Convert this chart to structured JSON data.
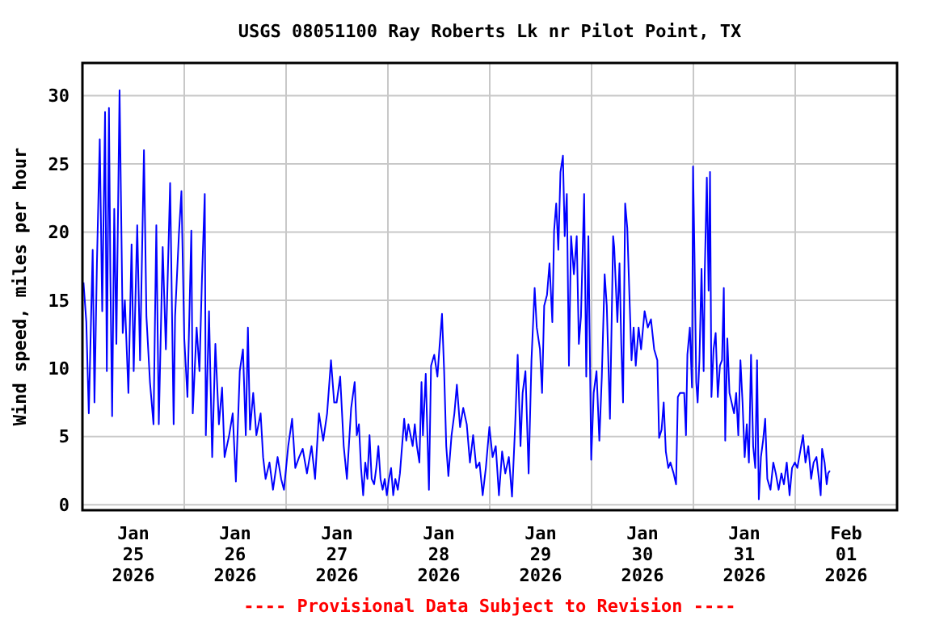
{
  "chart_data": {
    "type": "line",
    "title": "USGS 08051100 Ray Roberts Lk nr Pilot Point, TX",
    "ylabel": "Wind speed, miles per hour",
    "annotations": [
      "---- Provisional Data Subject to Revision ----"
    ],
    "xlim": [
      "2026-01-25T00:00",
      "2026-02-02T00:00"
    ],
    "xticks": [
      {
        "value": "2026-01-25T12:00",
        "label": "Jan\n25\n2026"
      },
      {
        "value": "2026-01-26T00:00",
        "label": null
      },
      {
        "value": "2026-01-26T12:00",
        "label": "Jan\n26\n2026"
      },
      {
        "value": "2026-01-27T00:00",
        "label": null
      },
      {
        "value": "2026-01-27T12:00",
        "label": "Jan\n27\n2026"
      },
      {
        "value": "2026-01-28T00:00",
        "label": null
      },
      {
        "value": "2026-01-28T12:00",
        "label": "Jan\n28\n2026"
      },
      {
        "value": "2026-01-29T00:00",
        "label": null
      },
      {
        "value": "2026-01-29T12:00",
        "label": "Jan\n29\n2026"
      },
      {
        "value": "2026-01-30T00:00",
        "label": null
      },
      {
        "value": "2026-01-30T12:00",
        "label": "Jan\n30\n2026"
      },
      {
        "value": "2026-01-31T00:00",
        "label": null
      },
      {
        "value": "2026-01-31T12:00",
        "label": "Jan\n31\n2026"
      },
      {
        "value": "2026-02-01T00:00",
        "label": null
      },
      {
        "value": "2026-02-01T12:00",
        "label": "Feb\n01\n2026"
      }
    ],
    "ylim": [
      -0.4,
      32.4
    ],
    "yticks": [
      0,
      5,
      10,
      15,
      20,
      25,
      30
    ],
    "grid": true,
    "line_style": "solid",
    "marker": "none",
    "x": [
      "2026-01-25T00:15",
      "2026-01-25T00:55",
      "2026-01-25T01:30",
      "2026-01-25T02:25",
      "2026-01-25T02:50",
      "2026-01-25T03:25",
      "2026-01-25T04:05",
      "2026-01-25T04:40",
      "2026-01-25T05:20",
      "2026-01-25T05:45",
      "2026-01-25T06:15",
      "2026-01-25T06:35",
      "2026-01-25T07:00",
      "2026-01-25T07:30",
      "2026-01-25T08:00",
      "2026-01-25T08:45",
      "2026-01-25T09:30",
      "2026-01-25T10:00",
      "2026-01-25T10:50",
      "2026-01-25T11:35",
      "2026-01-25T12:05",
      "2026-01-25T12:55",
      "2026-01-25T13:35",
      "2026-01-25T14:30",
      "2026-01-25T15:05",
      "2026-01-25T15:55",
      "2026-01-25T16:45",
      "2026-01-25T17:25",
      "2026-01-25T18:00",
      "2026-01-25T18:55",
      "2026-01-25T19:40",
      "2026-01-25T20:40",
      "2026-01-25T21:30",
      "2026-01-25T21:50",
      "2026-01-25T22:45",
      "2026-01-25T23:20",
      "2026-01-26T00:00",
      "2026-01-26T00:45",
      "2026-01-26T01:40",
      "2026-01-26T02:00",
      "2026-01-26T02:55",
      "2026-01-26T03:35",
      "2026-01-26T04:10",
      "2026-01-26T04:50",
      "2026-01-26T05:05",
      "2026-01-26T05:50",
      "2026-01-26T06:35",
      "2026-01-26T07:20",
      "2026-01-26T08:10",
      "2026-01-26T08:55",
      "2026-01-26T09:30",
      "2026-01-26T10:35",
      "2026-01-26T11:25",
      "2026-01-26T12:10",
      "2026-01-26T13:05",
      "2026-01-26T13:50",
      "2026-01-26T14:30",
      "2026-01-26T15:00",
      "2026-01-26T15:30",
      "2026-01-26T16:15",
      "2026-01-26T17:00",
      "2026-01-26T18:00",
      "2026-01-26T18:35",
      "2026-01-26T19:10",
      "2026-01-26T20:05",
      "2026-01-26T20:55",
      "2026-01-26T22:00",
      "2026-01-26T22:50",
      "2026-01-26T23:30",
      "2026-01-27T00:30",
      "2026-01-27T01:25",
      "2026-01-27T02:10",
      "2026-01-27T03:05",
      "2026-01-27T03:55",
      "2026-01-27T04:55",
      "2026-01-27T06:00",
      "2026-01-27T06:50",
      "2026-01-27T07:45",
      "2026-01-27T08:45",
      "2026-01-27T09:40",
      "2026-01-27T10:35",
      "2026-01-27T11:20",
      "2026-01-27T11:55",
      "2026-01-27T12:45",
      "2026-01-27T13:35",
      "2026-01-27T14:20",
      "2026-01-27T15:20",
      "2026-01-27T16:10",
      "2026-01-27T16:40",
      "2026-01-27T17:10",
      "2026-01-27T17:40",
      "2026-01-27T18:10",
      "2026-01-27T18:40",
      "2026-01-27T19:10",
      "2026-01-27T19:40",
      "2026-01-27T20:10",
      "2026-01-27T20:45",
      "2026-01-27T21:15",
      "2026-01-27T21:45",
      "2026-01-27T22:15",
      "2026-01-27T22:45",
      "2026-01-27T23:15",
      "2026-01-27T23:45",
      "2026-01-28T00:15",
      "2026-01-28T00:45",
      "2026-01-28T01:15",
      "2026-01-28T01:45",
      "2026-01-28T02:20",
      "2026-01-28T02:50",
      "2026-01-28T03:20",
      "2026-01-28T03:50",
      "2026-01-28T04:20",
      "2026-01-28T04:50",
      "2026-01-28T05:20",
      "2026-01-28T05:50",
      "2026-01-28T06:20",
      "2026-01-28T06:50",
      "2026-01-28T07:25",
      "2026-01-28T07:55",
      "2026-01-28T08:15",
      "2026-01-28T08:55",
      "2026-01-28T09:40",
      "2026-01-28T10:10",
      "2026-01-28T10:55",
      "2026-01-28T11:40",
      "2026-01-28T12:10",
      "2026-01-28T12:45",
      "2026-01-28T13:15",
      "2026-01-28T13:45",
      "2026-01-28T14:15",
      "2026-01-28T15:00",
      "2026-01-28T15:40",
      "2026-01-28T16:15",
      "2026-01-28T17:00",
      "2026-01-28T17:45",
      "2026-01-28T18:35",
      "2026-01-28T19:20",
      "2026-01-28T20:05",
      "2026-01-28T20:50",
      "2026-01-28T21:35",
      "2026-01-28T22:20",
      "2026-01-28T23:05",
      "2026-01-28T23:55",
      "2026-01-29T00:40",
      "2026-01-29T01:25",
      "2026-01-29T02:10",
      "2026-01-29T02:55",
      "2026-01-29T03:40",
      "2026-01-29T04:30",
      "2026-01-29T05:15",
      "2026-01-29T06:00",
      "2026-01-29T06:35",
      "2026-01-29T07:15",
      "2026-01-29T07:45",
      "2026-01-29T08:25",
      "2026-01-29T09:10",
      "2026-01-29T09:50",
      "2026-01-29T10:35",
      "2026-01-29T11:05",
      "2026-01-29T11:50",
      "2026-01-29T12:20",
      "2026-01-29T12:50",
      "2026-01-29T13:30",
      "2026-01-29T14:05",
      "2026-01-29T14:45",
      "2026-01-29T15:10",
      "2026-01-29T15:40",
      "2026-01-29T16:10",
      "2026-01-29T16:40",
      "2026-01-29T17:15",
      "2026-01-29T17:40",
      "2026-01-29T18:10",
      "2026-01-29T18:40",
      "2026-01-29T19:10",
      "2026-01-29T19:50",
      "2026-01-29T20:30",
      "2026-01-29T21:00",
      "2026-01-29T21:30",
      "2026-01-29T22:15",
      "2026-01-29T22:45",
      "2026-01-29T23:15",
      "2026-01-29T23:55",
      "2026-01-30T00:30",
      "2026-01-30T01:10",
      "2026-01-30T01:50",
      "2026-01-30T02:25",
      "2026-01-30T03:05",
      "2026-01-30T03:35",
      "2026-01-30T04:20",
      "2026-01-30T05:05",
      "2026-01-30T05:20",
      "2026-01-30T06:05",
      "2026-01-30T06:35",
      "2026-01-30T07:00",
      "2026-01-30T07:25",
      "2026-01-30T07:55",
      "2026-01-30T08:25",
      "2026-01-30T08:55",
      "2026-01-30T09:25",
      "2026-01-30T09:55",
      "2026-01-30T10:25",
      "2026-01-30T11:05",
      "2026-01-30T11:40",
      "2026-01-30T12:30",
      "2026-01-30T13:15",
      "2026-01-30T14:00",
      "2026-01-30T14:45",
      "2026-01-30T15:30",
      "2026-01-30T15:55",
      "2026-01-30T16:30",
      "2026-01-30T17:00",
      "2026-01-30T17:30",
      "2026-01-30T18:05",
      "2026-01-30T18:35",
      "2026-01-30T19:20",
      "2026-01-30T19:55",
      "2026-01-30T20:20",
      "2026-01-30T20:50",
      "2026-01-30T21:20",
      "2026-01-30T21:50",
      "2026-01-30T22:15",
      "2026-01-30T22:35",
      "2026-01-30T23:10",
      "2026-01-30T23:40",
      "2026-01-30T23:55",
      "2026-01-31T00:15",
      "2026-01-31T00:40",
      "2026-01-31T01:00",
      "2026-01-31T01:25",
      "2026-01-31T01:55",
      "2026-01-31T02:25",
      "2026-01-31T02:40",
      "2026-01-31T03:10",
      "2026-01-31T03:35",
      "2026-01-31T03:55",
      "2026-01-31T04:15",
      "2026-01-31T04:45",
      "2026-01-31T05:15",
      "2026-01-31T05:45",
      "2026-01-31T06:15",
      "2026-01-31T06:45",
      "2026-01-31T07:10",
      "2026-01-31T07:30",
      "2026-01-31T08:00",
      "2026-01-31T08:30",
      "2026-01-31T09:00",
      "2026-01-31T09:35",
      "2026-01-31T10:05",
      "2026-01-31T10:35",
      "2026-01-31T11:05",
      "2026-01-31T11:35",
      "2026-01-31T12:05",
      "2026-01-31T12:35",
      "2026-01-31T13:05",
      "2026-01-31T13:35",
      "2026-01-31T14:05",
      "2026-01-31T14:35",
      "2026-01-31T15:00",
      "2026-01-31T15:25",
      "2026-01-31T15:55",
      "2026-01-31T16:25",
      "2026-01-31T16:55",
      "2026-01-31T17:25",
      "2026-01-31T18:10",
      "2026-01-31T18:50",
      "2026-01-31T19:25",
      "2026-01-31T20:05",
      "2026-01-31T20:45",
      "2026-01-31T21:20",
      "2026-01-31T22:00",
      "2026-01-31T22:40",
      "2026-01-31T23:15",
      "2026-01-31T23:55",
      "2026-02-01T00:30",
      "2026-02-01T01:10",
      "2026-02-01T01:50",
      "2026-02-01T02:25",
      "2026-02-01T03:05",
      "2026-02-01T03:45",
      "2026-02-01T04:20",
      "2026-02-01T05:00",
      "2026-02-01T05:35",
      "2026-02-01T06:00",
      "2026-02-01T06:20",
      "2026-02-01T06:55",
      "2026-02-01T07:25",
      "2026-02-01T07:45",
      "2026-02-01T08:10"
    ],
    "series": [
      {
        "color": "#0000ff",
        "values": [
          16.3,
          13.4,
          6.7,
          18.7,
          7.5,
          17.7,
          26.8,
          14.2,
          28.8,
          9.8,
          29.1,
          16.9,
          6.5,
          21.7,
          11.8,
          30.4,
          12.6,
          15.0,
          8.2,
          19.1,
          9.8,
          20.5,
          10.6,
          26.0,
          13.8,
          9.0,
          5.9,
          20.5,
          5.9,
          18.9,
          11.4,
          23.6,
          5.9,
          13.8,
          19.9,
          23.0,
          12.2,
          7.9,
          20.1,
          6.7,
          13.0,
          9.8,
          16.5,
          22.8,
          5.1,
          14.2,
          3.5,
          11.8,
          5.9,
          8.6,
          3.5,
          5.1,
          6.7,
          1.7,
          9.8,
          11.4,
          5.1,
          13.0,
          5.5,
          8.2,
          5.1,
          6.7,
          3.5,
          1.9,
          3.1,
          1.1,
          3.5,
          1.9,
          1.1,
          4.3,
          6.3,
          2.7,
          3.5,
          4.1,
          2.3,
          4.3,
          1.9,
          6.7,
          4.7,
          6.7,
          10.6,
          7.5,
          7.5,
          9.4,
          4.3,
          1.9,
          7.1,
          9.0,
          5.1,
          5.9,
          2.7,
          0.7,
          3.1,
          1.9,
          5.1,
          1.9,
          1.5,
          2.7,
          4.3,
          1.9,
          1.1,
          1.9,
          0.7,
          1.9,
          2.7,
          0.7,
          1.9,
          1.1,
          2.3,
          4.3,
          6.3,
          4.7,
          5.9,
          5.1,
          4.3,
          5.9,
          4.3,
          3.1,
          9.0,
          5.1,
          9.6,
          1.1,
          10.2,
          11.0,
          9.4,
          11.6,
          14.0,
          9.8,
          4.3,
          2.1,
          5.1,
          6.7,
          8.8,
          5.7,
          7.1,
          5.9,
          3.1,
          5.1,
          2.7,
          3.1,
          0.7,
          2.7,
          5.7,
          3.5,
          4.3,
          0.7,
          3.9,
          2.3,
          3.5,
          0.6,
          5.9,
          11.0,
          4.3,
          8.2,
          9.8,
          2.3,
          10.6,
          15.9,
          13.0,
          11.4,
          8.2,
          14.6,
          15.4,
          17.7,
          13.4,
          20.1,
          22.1,
          18.7,
          24.4,
          25.6,
          19.7,
          22.8,
          10.2,
          19.7,
          16.9,
          19.7,
          11.8,
          13.8,
          22.8,
          9.4,
          19.7,
          3.3,
          8.2,
          9.8,
          4.7,
          9.4,
          16.9,
          14.6,
          6.3,
          19.7,
          18.9,
          13.4,
          17.7,
          11.8,
          7.5,
          22.1,
          20.3,
          15.4,
          10.6,
          13.0,
          10.2,
          13.0,
          11.4,
          14.2,
          13.0,
          13.6,
          11.4,
          10.6,
          4.9,
          5.5,
          7.5,
          3.9,
          2.7,
          3.1,
          2.3,
          1.5,
          7.9,
          8.2,
          8.2,
          8.2,
          5.1,
          11.0,
          13.0,
          8.6,
          24.8,
          18.5,
          9.0,
          7.5,
          10.6,
          17.3,
          9.8,
          16.9,
          24.0,
          15.7,
          24.4,
          7.9,
          11.4,
          12.6,
          7.9,
          10.2,
          10.6,
          15.9,
          4.7,
          12.2,
          8.2,
          7.5,
          6.7,
          8.2,
          5.1,
          10.6,
          7.5,
          3.5,
          5.9,
          3.1,
          11.0,
          4.3,
          2.7,
          10.6,
          0.4,
          3.5,
          4.7,
          6.3,
          1.9,
          1.1,
          3.1,
          2.3,
          1.1,
          2.3,
          1.5,
          3.1,
          0.7,
          2.7,
          3.1,
          2.7,
          3.9,
          5.1,
          3.1,
          4.3,
          1.9,
          3.1,
          3.5,
          1.9,
          0.7,
          4.1,
          3.1,
          1.5,
          2.3,
          2.5
        ]
      }
    ]
  }
}
